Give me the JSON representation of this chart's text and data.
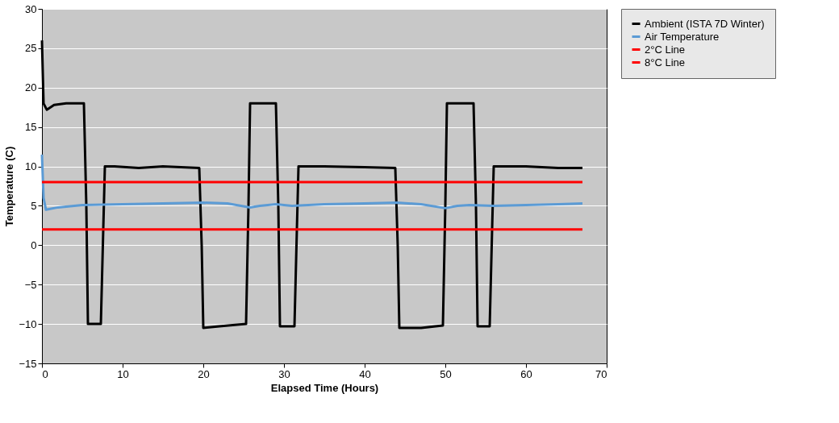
{
  "chart_data": {
    "type": "line",
    "xlabel": "Elapsed Time (Hours)",
    "ylabel": "Temperature (C)",
    "xlim": [
      0,
      70
    ],
    "xticks": [
      0,
      10,
      20,
      30,
      40,
      50,
      60,
      70
    ],
    "ylim": [
      -15,
      30
    ],
    "yticks": [
      -15,
      -10,
      -5,
      0,
      5,
      10,
      15,
      20,
      25,
      30
    ],
    "grid": "y",
    "legend": "right",
    "marker": "none",
    "line_style": "solid",
    "series": [
      {
        "name": "Ambient (ISTA 7D Winter)",
        "color": "#000000",
        "x": [
          0,
          0.2,
          0.6,
          1.5,
          3,
          5.2,
          5.5,
          5.7,
          6.5,
          7.3,
          7.6,
          7.8,
          9,
          12,
          15,
          19.5,
          19.8,
          20,
          22,
          25.3,
          25.6,
          25.8,
          27,
          29,
          29.3,
          29.5,
          30.5,
          31.3,
          31.6,
          31.8,
          35,
          40,
          43.8,
          44.1,
          44.3,
          47,
          49.7,
          50,
          50.2,
          52,
          53.5,
          53.8,
          54,
          55,
          55.5,
          55.8,
          56,
          60,
          64,
          67
        ],
        "values": [
          26,
          18,
          17.2,
          17.8,
          18,
          18,
          5,
          -10,
          -10,
          -10,
          2,
          10,
          10,
          9.8,
          10,
          9.8,
          0,
          -10.5,
          -10.3,
          -10,
          5,
          18,
          18,
          18,
          5,
          -10.3,
          -10.3,
          -10.3,
          2,
          10,
          10,
          9.9,
          9.8,
          0,
          -10.5,
          -10.5,
          -10.2,
          5,
          18,
          18,
          18,
          5,
          -10.3,
          -10.3,
          -10.3,
          2,
          10,
          10,
          9.8,
          9.8
        ]
      },
      {
        "name": "Air Temperature",
        "color": "#5b9bd5",
        "x": [
          0,
          0.2,
          0.5,
          2,
          5,
          10,
          15,
          20,
          23,
          25.8,
          27,
          29,
          31,
          35,
          40,
          44,
          47,
          50,
          51.5,
          53,
          56,
          60,
          64,
          67
        ],
        "values": [
          11.5,
          6,
          4.5,
          4.8,
          5.1,
          5.2,
          5.3,
          5.4,
          5.3,
          4.8,
          5.0,
          5.2,
          5.0,
          5.2,
          5.3,
          5.4,
          5.2,
          4.7,
          5.0,
          5.1,
          5.0,
          5.1,
          5.2,
          5.3
        ]
      },
      {
        "name": "2°C Line",
        "color": "#ff0000",
        "x": [
          0,
          67
        ],
        "values": [
          8,
          8
        ]
      },
      {
        "name": "8°C Line",
        "color": "#ff0000",
        "x": [
          0,
          67
        ],
        "values": [
          2,
          2
        ]
      }
    ]
  }
}
